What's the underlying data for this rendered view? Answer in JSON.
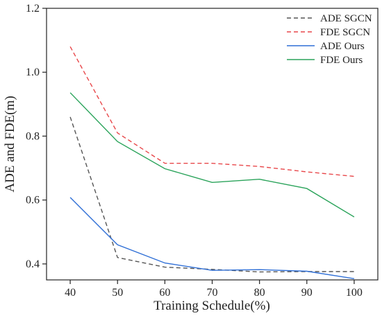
{
  "chart_data": {
    "type": "line",
    "xlabel": "Training Schedule(%)",
    "ylabel": "ADE and FDE(m)",
    "x": [
      40,
      50,
      60,
      70,
      80,
      90,
      100
    ],
    "xlim": [
      35,
      105
    ],
    "ylim": [
      0.35,
      1.2
    ],
    "xticks": [
      "40",
      "50",
      "60",
      "70",
      "80",
      "90",
      "100"
    ],
    "yticks": [
      "0.4",
      "0.6",
      "0.8",
      "1.0",
      "1.2"
    ],
    "ytick_values": [
      0.4,
      0.6,
      0.8,
      1.0,
      1.2
    ],
    "grid": false,
    "legend_position": "top-right",
    "series": [
      {
        "name": "ADE SGCN",
        "values": [
          0.86,
          0.42,
          0.39,
          0.383,
          0.375,
          0.376,
          0.376
        ],
        "color": "#555555",
        "dashed": true
      },
      {
        "name": "FDE SGCN",
        "values": [
          1.08,
          0.81,
          0.715,
          0.715,
          0.705,
          0.688,
          0.674
        ],
        "color": "#e8474a",
        "dashed": true
      },
      {
        "name": "ADE Ours",
        "values": [
          0.608,
          0.46,
          0.403,
          0.38,
          0.382,
          0.377,
          0.354
        ],
        "color": "#2f6fd6",
        "dashed": false
      },
      {
        "name": "FDE Ours",
        "values": [
          0.936,
          0.783,
          0.698,
          0.655,
          0.665,
          0.636,
          0.547
        ],
        "color": "#2aa35a",
        "dashed": false
      }
    ]
  }
}
